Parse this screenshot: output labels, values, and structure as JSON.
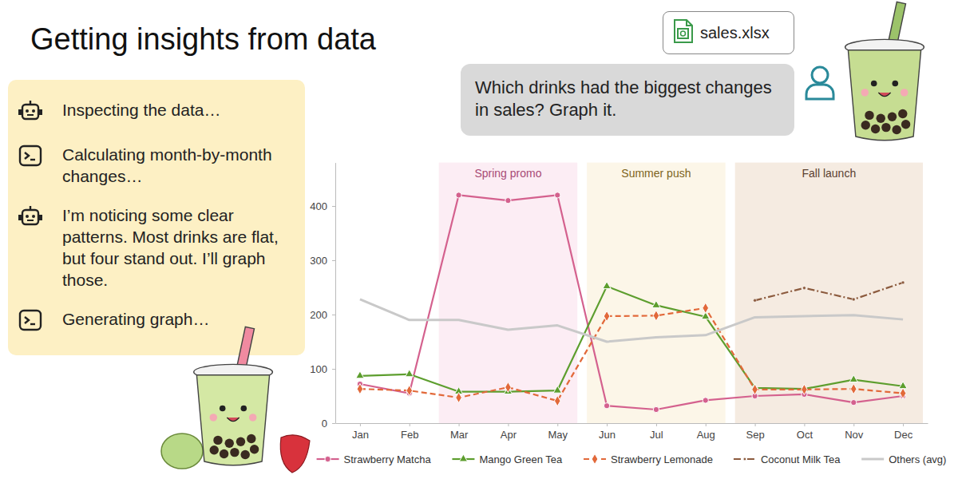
{
  "slide": {
    "title": "Getting insights from data",
    "file": "sales.xlsx",
    "prompt": "Which drinks had the biggest changes in sales? Graph it.",
    "steps": [
      "Inspecting the data…",
      "Calculating month-by-month changes…",
      "I’m noticing some clear patterns. Most drinks are flat, but four stand out. I’ll graph those.",
      "Generating graph…"
    ]
  },
  "chart_data": {
    "type": "line",
    "categories": [
      "Jan",
      "Feb",
      "Mar",
      "Apr",
      "May",
      "Jun",
      "Jul",
      "Aug",
      "Sep",
      "Oct",
      "Nov",
      "Dec"
    ],
    "series": [
      {
        "name": "Strawberry Matcha",
        "color": "#d4618e",
        "marker": "circle",
        "line_style": "solid",
        "values": [
          72,
          55,
          420,
          410,
          420,
          32,
          25,
          42,
          50,
          53,
          38,
          50
        ]
      },
      {
        "name": "Mango Green Tea",
        "color": "#5d9e2e",
        "marker": "triangle",
        "line_style": "solid",
        "values": [
          87,
          90,
          58,
          58,
          60,
          252,
          217,
          196,
          65,
          63,
          80,
          68
        ]
      },
      {
        "name": "Strawberry Lemonade",
        "color": "#e2693a",
        "marker": "diamond",
        "line_style": "dashed",
        "values": [
          63,
          60,
          47,
          66,
          41,
          197,
          198,
          212,
          62,
          62,
          63,
          55
        ]
      },
      {
        "name": "Coconut Milk Tea",
        "color": "#8c5b3e",
        "marker": "point",
        "line_style": "dashdot",
        "values": [
          null,
          null,
          null,
          null,
          null,
          null,
          null,
          null,
          226,
          249,
          228,
          259
        ]
      },
      {
        "name": "Others (avg)",
        "color": "#c9c9c9",
        "marker": "none",
        "line_style": "solid",
        "values": [
          228,
          190,
          190,
          172,
          180,
          150,
          158,
          162,
          195,
          197,
          199,
          191
        ]
      }
    ],
    "bands": [
      {
        "label": "Spring promo",
        "start": "Mar",
        "end": "May",
        "color": "#fcedf4"
      },
      {
        "label": "Summer push",
        "start": "Jun",
        "end": "Aug",
        "color": "#fcf6e8"
      },
      {
        "label": "Fall launch",
        "start": "Sep",
        "end": "Dec",
        "color": "#f5ebe1"
      }
    ],
    "ylim": [
      0,
      480
    ],
    "yticks": [
      0,
      100,
      200,
      300,
      400
    ],
    "grid": false,
    "legend": "bottom"
  }
}
